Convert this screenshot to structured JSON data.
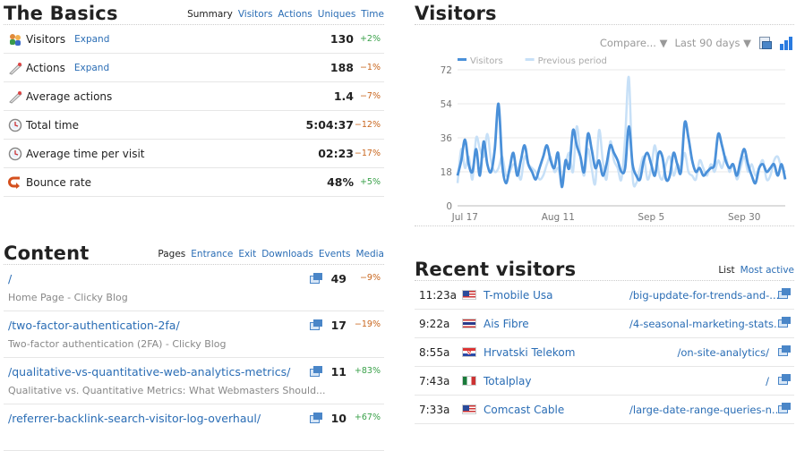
{
  "basics": {
    "title": "The Basics",
    "nav": [
      "Summary",
      "Visitors",
      "Actions",
      "Uniques",
      "Time"
    ],
    "rows": [
      {
        "label": "Visitors",
        "expand": "Expand",
        "value": "130",
        "change": "+2%",
        "dir": "up",
        "icon": "visitors-icon"
      },
      {
        "label": "Actions",
        "expand": "Expand",
        "value": "188",
        "change": "−1%",
        "dir": "down",
        "icon": "actions-icon"
      },
      {
        "label": "Average actions",
        "expand": "",
        "value": "1.4",
        "change": "−7%",
        "dir": "down",
        "icon": "average-actions-icon"
      },
      {
        "label": "Total time",
        "expand": "",
        "value": "5:04:37",
        "change": "−12%",
        "dir": "down",
        "icon": "clock-icon"
      },
      {
        "label": "Average time per visit",
        "expand": "",
        "value": "02:23",
        "change": "−17%",
        "dir": "down",
        "icon": "clock-icon"
      },
      {
        "label": "Bounce rate",
        "expand": "",
        "value": "48%",
        "change": "+5%",
        "dir": "up",
        "icon": "bounce-icon"
      }
    ]
  },
  "content": {
    "title": "Content",
    "nav": [
      "Pages",
      "Entrance",
      "Exit",
      "Downloads",
      "Events",
      "Media"
    ],
    "rows": [
      {
        "path": "/",
        "title": "Home Page - Clicky Blog",
        "count": "49",
        "change": "−9%",
        "dir": "down"
      },
      {
        "path": "/two-factor-authentication-2fa/",
        "title": "Two-factor authentication (2FA) - Clicky Blog",
        "count": "17",
        "change": "−19%",
        "dir": "down"
      },
      {
        "path": "/qualitative-vs-quantitative-web-analytics-metrics/",
        "title": "Qualitative vs. Quantitative Metrics: What Webmasters Should...",
        "count": "11",
        "change": "+83%",
        "dir": "up"
      },
      {
        "path": "/referrer-backlink-search-visitor-log-overhaul/",
        "title": "",
        "count": "10",
        "change": "+67%",
        "dir": "up"
      }
    ]
  },
  "visitors": {
    "title": "Visitors",
    "compare": "Compare... ▼",
    "range": "Last 90 days ▼",
    "colors": {
      "current": "#4a90d9",
      "previous": "#c7e0f7"
    }
  },
  "chart_data": {
    "type": "line",
    "title": "",
    "xlabel": "",
    "ylabel": "",
    "ylim": [
      0,
      72
    ],
    "yticks": [
      0,
      18,
      36,
      54,
      72
    ],
    "xticks": [
      "Jul 17",
      "Aug 11",
      "Sep 5",
      "Sep 30"
    ],
    "xtick_index": [
      2,
      27,
      52,
      77
    ],
    "legend": [
      "Visitors",
      "Previous period"
    ],
    "legend_position": "top-left",
    "grid": true,
    "series": [
      {
        "name": "Visitors",
        "values": [
          16,
          24,
          35,
          22,
          18,
          30,
          16,
          34,
          22,
          18,
          30,
          54,
          22,
          12,
          20,
          28,
          16,
          24,
          32,
          22,
          18,
          14,
          20,
          26,
          32,
          24,
          20,
          28,
          10,
          24,
          20,
          40,
          32,
          26,
          18,
          38,
          30,
          20,
          24,
          16,
          22,
          32,
          28,
          24,
          18,
          20,
          42,
          22,
          16,
          14,
          24,
          28,
          22,
          16,
          28,
          26,
          14,
          16,
          28,
          22,
          18,
          44,
          36,
          24,
          18,
          20,
          16,
          18,
          20,
          22,
          38,
          32,
          24,
          20,
          22,
          16,
          24,
          30,
          22,
          16,
          12,
          20,
          22,
          18,
          20,
          22,
          16,
          22,
          14
        ]
      },
      {
        "name": "Previous period",
        "values": [
          12,
          30,
          20,
          26,
          14,
          36,
          30,
          26,
          38,
          24,
          18,
          20,
          26,
          16,
          18,
          22,
          20,
          14,
          26,
          22,
          20,
          18,
          14,
          16,
          22,
          26,
          18,
          20,
          14,
          22,
          28,
          18,
          42,
          26,
          16,
          30,
          20,
          12,
          40,
          24,
          14,
          34,
          24,
          20,
          14,
          36,
          68,
          16,
          12,
          20,
          26,
          14,
          20,
          32,
          18,
          14,
          22,
          26,
          16,
          22,
          20,
          28,
          18,
          16,
          14,
          24,
          20,
          16,
          22,
          18,
          24,
          20,
          26,
          18,
          22,
          14,
          20,
          26,
          18,
          22,
          16,
          20,
          24,
          14,
          16,
          24,
          26,
          20,
          18
        ]
      }
    ]
  },
  "recent": {
    "title": "Recent visitors",
    "nav": [
      "List",
      "Most active"
    ],
    "rows": [
      {
        "time": "11:23a",
        "flag": "us",
        "who": "T-mobile Usa",
        "page": "/big-update-for-trends-and-..."
      },
      {
        "time": "9:22a",
        "flag": "th",
        "who": "Ais Fibre",
        "page": "/4-seasonal-marketing-stats..."
      },
      {
        "time": "8:55a",
        "flag": "hr",
        "who": "Hrvatski Telekom",
        "page": "/on-site-analytics/"
      },
      {
        "time": "7:43a",
        "flag": "mx",
        "who": "Totalplay",
        "page": "/"
      },
      {
        "time": "7:33a",
        "flag": "us",
        "who": "Comcast Cable",
        "page": "/large-date-range-queries-n..."
      }
    ]
  }
}
